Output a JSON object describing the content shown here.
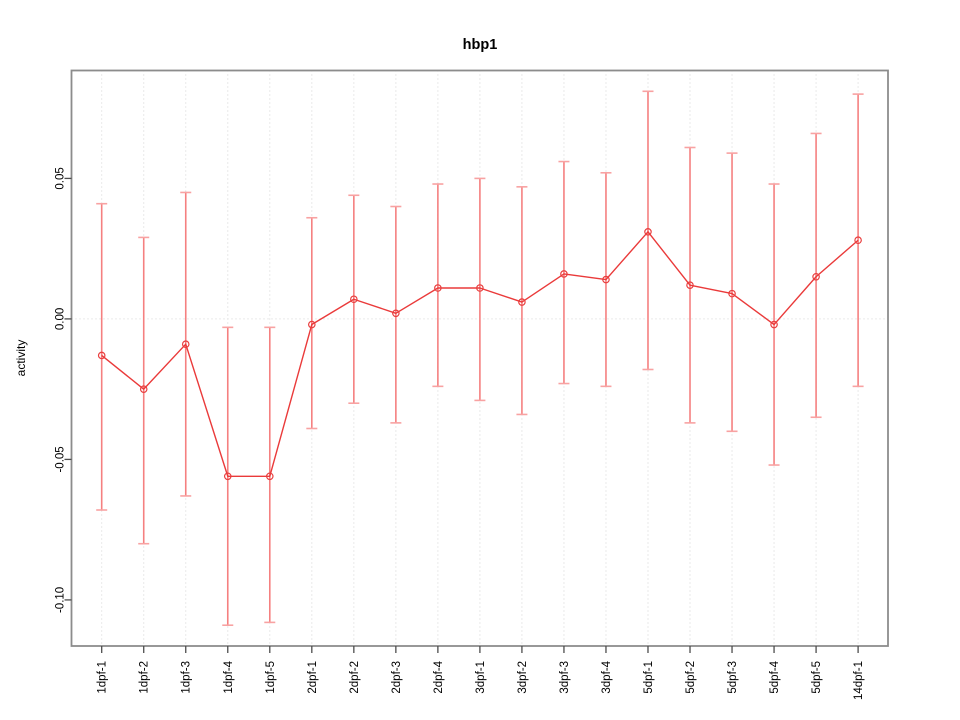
{
  "figure": {
    "background": "#ffffff"
  },
  "chart_data": {
    "type": "line",
    "subtype": "points-with-error-bars",
    "title": "hbp1",
    "xlabel": "",
    "ylabel": "activity",
    "legend": "none",
    "grid": "dotted vertical gridline at every category; dotted horizontal gridline at y=0",
    "categories": [
      "1dpf-1",
      "1dpf-2",
      "1dpf-3",
      "1dpf-4",
      "1dpf-5",
      "2dpf-1",
      "2dpf-2",
      "2dpf-3",
      "2dpf-4",
      "3dpf-1",
      "3dpf-2",
      "3dpf-3",
      "3dpf-4",
      "5dpf-1",
      "5dpf-2",
      "5dpf-3",
      "5dpf-4",
      "5dpf-5",
      "14dpf-1"
    ],
    "series": [
      {
        "name": "activity",
        "values": [
          -0.013,
          -0.025,
          -0.009,
          -0.056,
          -0.056,
          -0.002,
          0.007,
          0.002,
          0.011,
          0.011,
          0.006,
          0.016,
          0.014,
          0.031,
          0.012,
          0.009,
          -0.002,
          0.015,
          0.028
        ],
        "error_low": [
          -0.068,
          -0.08,
          -0.063,
          -0.109,
          -0.108,
          -0.039,
          -0.03,
          -0.037,
          -0.024,
          -0.029,
          -0.034,
          -0.023,
          -0.024,
          -0.018,
          -0.037,
          -0.04,
          -0.052,
          -0.035,
          -0.024
        ],
        "error_high": [
          0.041,
          0.029,
          0.045,
          -0.003,
          -0.003,
          0.036,
          0.044,
          0.04,
          0.048,
          0.05,
          0.047,
          0.056,
          0.052,
          0.081,
          0.061,
          0.059,
          0.048,
          0.066,
          0.08
        ]
      }
    ],
    "yticks": [
      0.05,
      0.0,
      -0.05,
      -0.1
    ],
    "ytick_labels": [
      "0.05",
      "0.00",
      "-0.05",
      "-0.10"
    ],
    "ylim": [
      -0.1164,
      0.0884
    ],
    "colors": {
      "line": "#ea3a3a",
      "marker_stroke": "#e93f3f",
      "errorbar": "#f58080",
      "errorbar_cap": "#f8a2a2",
      "gridline": "#d4d4d4",
      "axis_border": "#8c8c8c",
      "tick_mark": "#4d4d4d",
      "text": "#000000"
    }
  }
}
